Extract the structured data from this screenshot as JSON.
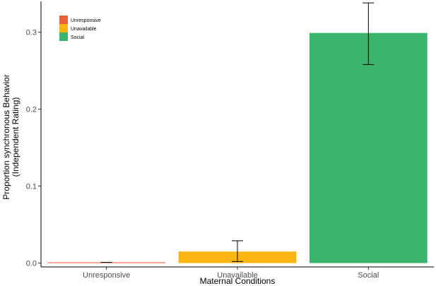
{
  "chart_data": {
    "type": "bar",
    "categories": [
      "Unresponsive",
      "Unavailable",
      "Social"
    ],
    "values": [
      0.001,
      0.015,
      0.299
    ],
    "error_low": [
      0.001,
      0.002,
      0.258
    ],
    "error_high": [
      0.001,
      0.029,
      0.338
    ],
    "colors": [
      "#e8613c",
      "#fbb511",
      "#3bb46e"
    ],
    "xlabel": "Maternal Conditions",
    "ylabel_lines": [
      "Proportion synchronous Behavior",
      "(Independent Rating)"
    ],
    "ylim": [
      -0.005,
      0.34
    ],
    "yticks": [
      0.0,
      0.1,
      0.2,
      0.3
    ],
    "ytick_labels": [
      "0.0",
      "0.1",
      "0.2",
      "0.3"
    ],
    "grid": false,
    "legend": {
      "position": "top-left",
      "entries": [
        "Unresponsive",
        "Unavailable",
        "Social"
      ]
    }
  }
}
